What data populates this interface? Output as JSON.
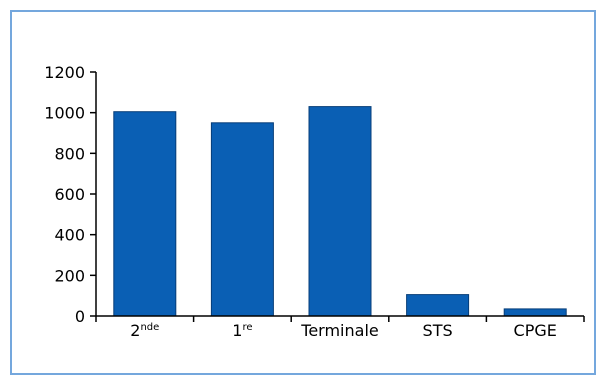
{
  "colors": {
    "frame_border": "#74a7dd",
    "bar_fill": "#0a5fb4",
    "bar_stroke": "#063d78",
    "axis": "#000000"
  },
  "chart_data": {
    "type": "bar",
    "categories": [
      {
        "base": "2",
        "sup": "nde"
      },
      {
        "base": "1",
        "sup": "re"
      },
      {
        "base": "Terminale",
        "sup": ""
      },
      {
        "base": "STS",
        "sup": ""
      },
      {
        "base": "CPGE",
        "sup": ""
      }
    ],
    "values": [
      1005,
      950,
      1030,
      105,
      35
    ],
    "title": "",
    "xlabel": "",
    "ylabel": "",
    "ylim": [
      0,
      1200
    ],
    "yticks": [
      0,
      200,
      400,
      600,
      800,
      1000,
      1200
    ],
    "grid": false,
    "legend": "none"
  }
}
